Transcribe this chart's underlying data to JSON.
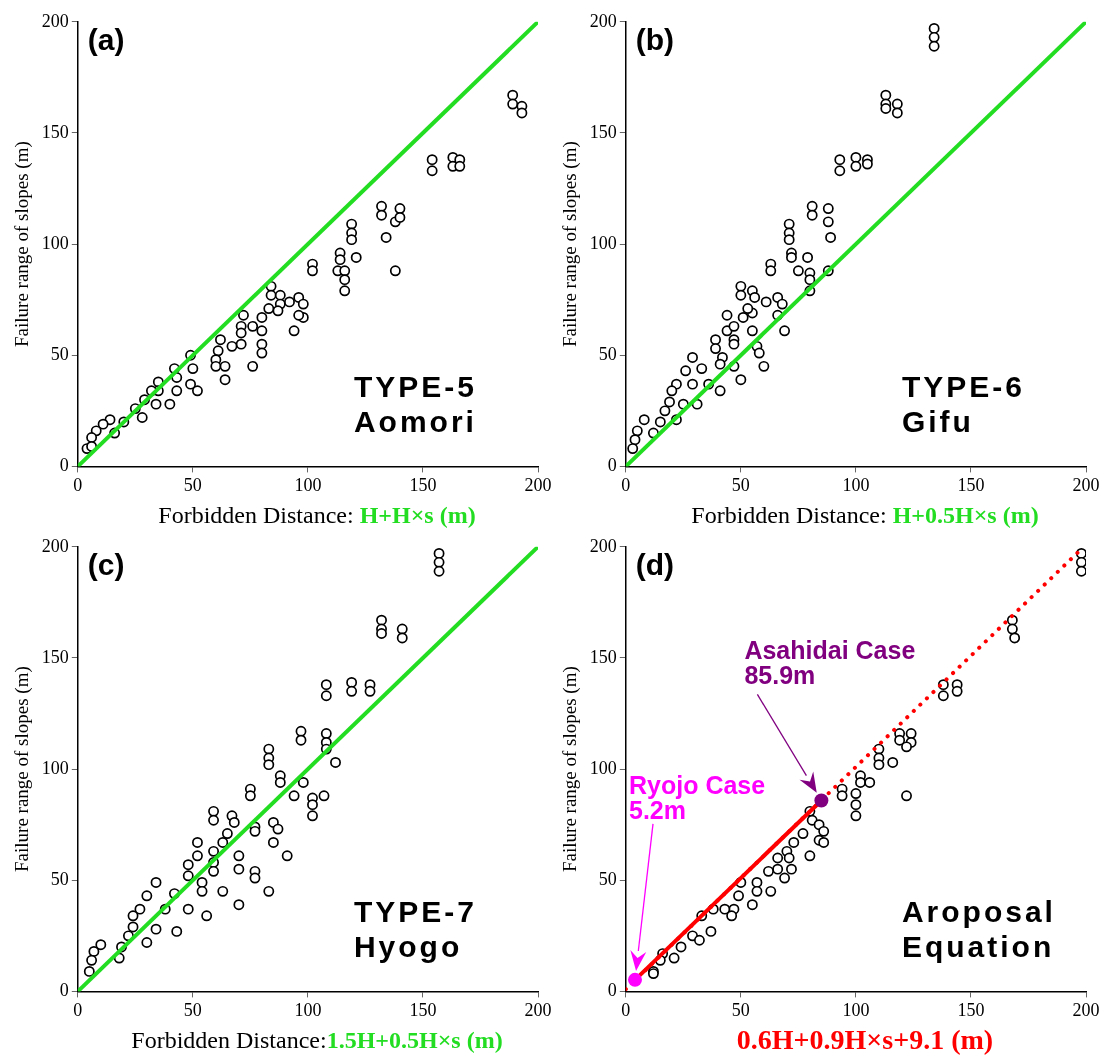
{
  "chart_data": [
    {
      "type": "scatter",
      "xlabel": "Forbidden Distance: H+H×s (m)",
      "ylabel": "Failure range of slopes (m)",
      "xlim": [
        0,
        200
      ],
      "ylim": [
        0,
        200
      ],
      "xticks": [
        0,
        50,
        100,
        150,
        200
      ],
      "yticks": [
        0,
        50,
        100,
        150,
        200
      ],
      "marker": "circle",
      "annotations": [
        "(a)",
        "TYPE-5",
        "Aomori"
      ],
      "series": [
        {
          "type": "scatter",
          "color": "#000000",
          "x": [
            189,
            189,
            193,
            193,
            154,
            154,
            163,
            163,
            166,
            166,
            132,
            132,
            134,
            138,
            140,
            140,
            138,
            119,
            119,
            119,
            121,
            114,
            114,
            113,
            116,
            116,
            116,
            102,
            102,
            84,
            84,
            88,
            88,
            87,
            83,
            92,
            94,
            96,
            98,
            98,
            96,
            72,
            71,
            71,
            71,
            76,
            80,
            80,
            80,
            80,
            76,
            67,
            62,
            61,
            60,
            60,
            64,
            64,
            49,
            50,
            49,
            52,
            42,
            43,
            43,
            40,
            35,
            35,
            32,
            34,
            29,
            25,
            28,
            20,
            16,
            14,
            11,
            8,
            6,
            4,
            6
          ],
          "values": [
            167,
            163,
            162,
            159,
            138,
            133,
            139,
            135,
            138,
            135,
            117,
            113,
            103,
            110,
            116,
            112,
            88,
            109,
            105,
            102,
            94,
            96,
            93,
            88,
            88,
            84,
            79,
            91,
            88,
            81,
            77,
            77,
            73,
            70,
            71,
            74,
            61,
            76,
            73,
            67,
            68,
            68,
            63,
            60,
            55,
            63,
            67,
            61,
            55,
            51,
            45,
            54,
            57,
            52,
            48,
            45,
            45,
            39,
            50,
            44,
            37,
            34,
            44,
            40,
            34,
            28,
            38,
            34,
            34,
            28,
            30,
            26,
            22,
            20,
            15,
            21,
            19,
            16,
            13,
            8,
            9
          ]
        },
        {
          "type": "line",
          "color": "#22dd22",
          "marker": "none",
          "x": [
            0,
            200
          ],
          "values": [
            0,
            200
          ]
        }
      ]
    },
    {
      "type": "scatter",
      "xlabel": "Forbidden Distance: H+0.5H×s (m)",
      "ylabel": "Failure range of slopes (m)",
      "xlim": [
        0,
        200
      ],
      "ylim": [
        0,
        200
      ],
      "xticks": [
        0,
        50,
        100,
        150,
        200
      ],
      "yticks": [
        0,
        50,
        100,
        150,
        200
      ],
      "marker": "circle",
      "annotations": [
        "(b)",
        "TYPE-6",
        "Gifu"
      ],
      "series": [
        {
          "type": "scatter",
          "color": "#000000",
          "x": [
            134,
            134,
            134,
            113,
            113,
            113,
            118,
            118,
            93,
            93,
            100,
            100,
            105,
            105,
            81,
            81,
            88,
            88,
            89,
            71,
            71,
            71,
            72,
            72,
            79,
            75,
            80,
            80,
            80,
            88,
            63,
            63,
            50,
            50,
            55,
            56,
            55,
            53,
            61,
            66,
            68,
            66,
            69,
            51,
            44,
            44,
            47,
            47,
            47,
            55,
            57,
            58,
            60,
            39,
            39,
            42,
            41,
            47,
            50,
            29,
            26,
            33,
            29,
            36,
            41,
            31,
            22,
            20,
            19,
            25,
            17,
            22,
            15,
            12,
            8,
            5,
            4,
            3
          ],
          "values": [
            197,
            193,
            189,
            167,
            163,
            161,
            163,
            159,
            138,
            133,
            139,
            135,
            138,
            136,
            117,
            113,
            116,
            110,
            103,
            109,
            105,
            102,
            96,
            94,
            94,
            88,
            87,
            84,
            79,
            88,
            91,
            88,
            81,
            77,
            79,
            76,
            69,
            71,
            74,
            76,
            73,
            68,
            61,
            67,
            68,
            61,
            63,
            57,
            55,
            61,
            54,
            51,
            45,
            57,
            53,
            49,
            46,
            45,
            39,
            49,
            43,
            44,
            37,
            37,
            34,
            28,
            37,
            34,
            29,
            28,
            25,
            21,
            20,
            15,
            21,
            16,
            12,
            8
          ]
        },
        {
          "type": "line",
          "color": "#22dd22",
          "marker": "none",
          "x": [
            0,
            200
          ],
          "values": [
            0,
            200
          ]
        }
      ]
    },
    {
      "type": "scatter",
      "xlabel": "Forbidden Distance:1.5H+0.5H×s (m)",
      "ylabel": "Failure range of slopes (m)",
      "xlim": [
        0,
        200
      ],
      "ylim": [
        0,
        200
      ],
      "xticks": [
        0,
        50,
        100,
        150,
        200
      ],
      "yticks": [
        0,
        50,
        100,
        150,
        200
      ],
      "marker": "circle",
      "annotations": [
        "(c)",
        "TYPE-7",
        "Hyogo"
      ],
      "series": [
        {
          "type": "scatter",
          "color": "#000000",
          "x": [
            157,
            157,
            157,
            132,
            132,
            132,
            141,
            141,
            108,
            108,
            119,
            119,
            127,
            127,
            97,
            97,
            108,
            108,
            108,
            112,
            83,
            83,
            83,
            88,
            88,
            98,
            94,
            102,
            102,
            102,
            107,
            75,
            75,
            59,
            59,
            67,
            68,
            65,
            77,
            77,
            85,
            87,
            85,
            91,
            63,
            52,
            52,
            59,
            59,
            59,
            70,
            70,
            77,
            77,
            83,
            48,
            48,
            54,
            54,
            63,
            70,
            56,
            34,
            30,
            42,
            38,
            48,
            43,
            34,
            27,
            24,
            24,
            22,
            30,
            19,
            18,
            10,
            7,
            6,
            5
          ],
          "values": [
            197,
            193,
            189,
            167,
            163,
            161,
            163,
            159,
            138,
            133,
            139,
            135,
            138,
            135,
            117,
            113,
            116,
            112,
            109,
            103,
            109,
            105,
            102,
            97,
            94,
            94,
            88,
            87,
            84,
            79,
            88,
            91,
            88,
            81,
            77,
            79,
            76,
            71,
            74,
            72,
            76,
            73,
            67,
            61,
            67,
            67,
            61,
            63,
            58,
            54,
            61,
            55,
            54,
            51,
            45,
            57,
            52,
            49,
            45,
            45,
            39,
            34,
            49,
            43,
            44,
            37,
            37,
            27,
            28,
            37,
            34,
            29,
            25,
            22,
            20,
            15,
            21,
            18,
            14,
            9
          ]
        },
        {
          "type": "line",
          "color": "#22dd22",
          "marker": "none",
          "x": [
            0,
            200
          ],
          "values": [
            0,
            200
          ]
        }
      ]
    },
    {
      "type": "scatter",
      "xlabel": "0.6H+0.9H×s+9.1 (m)",
      "ylabel": "Failure range of slopes (m)",
      "xlim": [
        0,
        200
      ],
      "ylim": [
        0,
        200
      ],
      "xticks": [
        0,
        50,
        100,
        150,
        200
      ],
      "yticks": [
        0,
        50,
        100,
        150,
        200
      ],
      "marker": "circle",
      "annotations": [
        "(d)",
        "Aroposal",
        "Equation",
        "Asahidai Case",
        "85.9m",
        "Ryojo Case",
        "5.2m"
      ],
      "series": [
        {
          "type": "scatter",
          "color": "#000000",
          "x": [
            198,
            198,
            198,
            168,
            168,
            169,
            138,
            138,
            144,
            144,
            119,
            119,
            124,
            124,
            122,
            110,
            110,
            110,
            116,
            122,
            102,
            102,
            106,
            94,
            94,
            100,
            100,
            100,
            80,
            81,
            84,
            86,
            84,
            86,
            77,
            80,
            73,
            70,
            71,
            72,
            69,
            66,
            66,
            62,
            63,
            57,
            57,
            55,
            50,
            49,
            47,
            43,
            46,
            38,
            37,
            33,
            29,
            32,
            24,
            21,
            16,
            15,
            12,
            12
          ],
          "values": [
            197,
            193,
            189,
            167,
            163,
            159,
            138,
            133,
            138,
            135,
            116,
            113,
            116,
            112,
            110,
            109,
            105,
            102,
            103,
            88,
            97,
            94,
            94,
            91,
            88,
            89,
            84,
            79,
            81,
            77,
            75,
            72,
            68,
            67,
            71,
            61,
            67,
            63,
            60,
            55,
            51,
            60,
            55,
            54,
            45,
            49,
            45,
            39,
            49,
            43,
            37,
            37,
            34,
            37,
            27,
            34,
            25,
            23,
            20,
            15,
            17,
            14,
            9,
            8
          ]
        },
        {
          "type": "line",
          "color": "#ff0000",
          "marker": "none",
          "line_style": "dotted",
          "x": [
            0,
            199
          ],
          "values": [
            1,
            200
          ]
        },
        {
          "type": "line",
          "color": "#ff0000",
          "marker": "none",
          "x": [
            4,
            85
          ],
          "values": [
            5.2,
            85.9
          ]
        },
        {
          "type": "scatter",
          "color": "#ff00ff",
          "marker": "circle",
          "x": [
            4
          ],
          "values": [
            5.2
          ]
        },
        {
          "type": "scatter",
          "color": "#800080",
          "marker": "circle",
          "x": [
            85
          ],
          "values": [
            85.9
          ]
        }
      ]
    }
  ]
}
